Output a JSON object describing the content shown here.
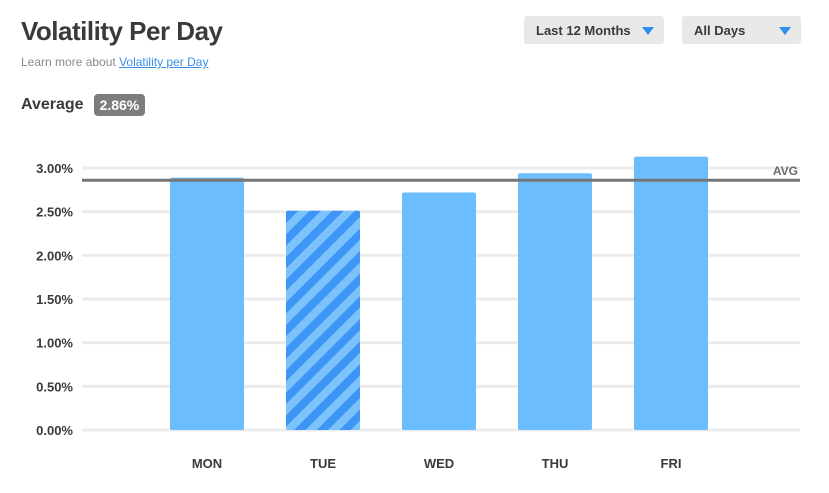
{
  "header": {
    "title": "Volatility Per Day",
    "learn_prefix": "Learn more about",
    "learn_link": "Volatility per Day"
  },
  "average": {
    "label": "Average",
    "value": "2.86%"
  },
  "filters": {
    "period": "Last 12 Months",
    "days": "All Days"
  },
  "colors": {
    "bar": "#6bbdfd",
    "bar_highlight": "#3d95f5",
    "bar_stripe": "#7cc3fc",
    "avg_line": "#767676",
    "grid": "#ececec",
    "dropdown_caret": "#2f8fee"
  },
  "chart_data": {
    "type": "bar",
    "title": "",
    "xlabel": "",
    "ylabel": "",
    "categories": [
      "MON",
      "TUE",
      "WED",
      "THU",
      "FRI"
    ],
    "values": [
      2.89,
      2.51,
      2.72,
      2.94,
      3.13
    ],
    "highlighted_category": "TUE",
    "ylim": [
      0,
      3.0
    ],
    "yticks": [
      0,
      0.5,
      1.0,
      1.5,
      2.0,
      2.5,
      3.0
    ],
    "ytick_labels": [
      "0.00%",
      "0.50%",
      "1.00%",
      "1.50%",
      "2.00%",
      "2.50%",
      "3.00%"
    ],
    "reference_line": {
      "label": "AVG",
      "value": 2.86
    },
    "grid": true
  }
}
